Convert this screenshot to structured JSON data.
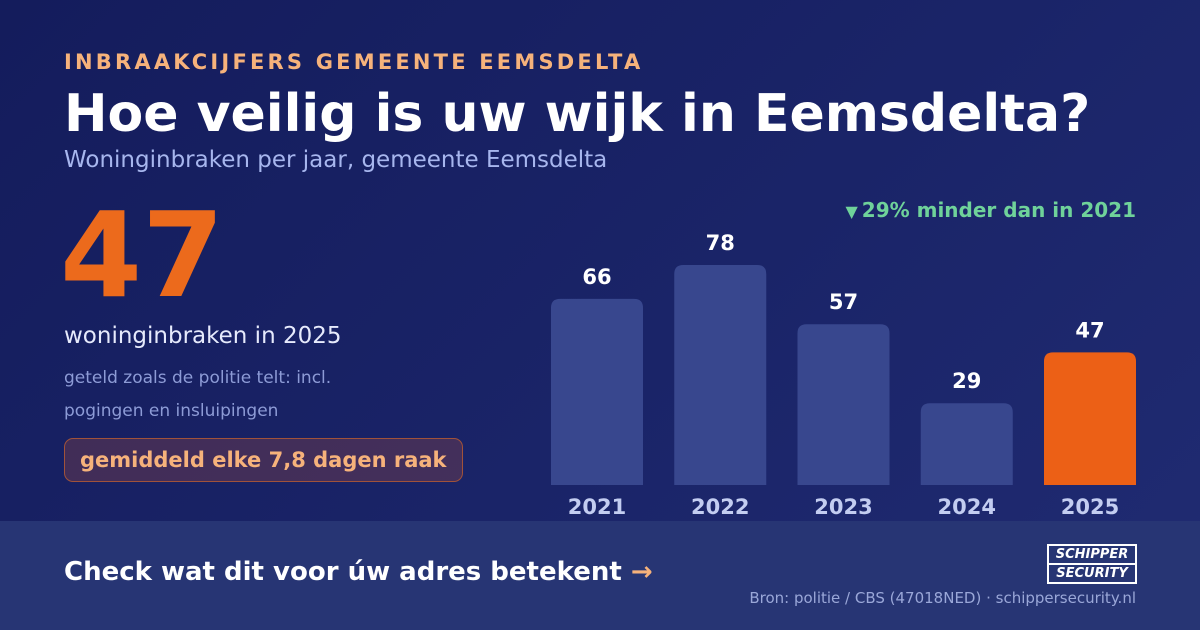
{
  "header": {
    "eyebrow": "INBRAAKCIJFERS GEMEENTE EEMSDELTA",
    "title": "Hoe veilig is uw wijk in Eemsdelta?",
    "subtitle": "Woninginbraken per jaar, gemeente Eemsdelta"
  },
  "metric": {
    "value": "47",
    "label": "woninginbraken in 2025",
    "note": "geteld zoals de politie telt: incl. pogingen en insluipingen",
    "badge": "gemiddeld elke 7,8 dagen raak"
  },
  "delta": {
    "arrow": "▼",
    "text": "29% minder dan in 2021"
  },
  "chart_data": {
    "type": "bar",
    "categories": [
      "2021",
      "2022",
      "2023",
      "2024",
      "2025"
    ],
    "values": [
      66,
      78,
      57,
      29,
      47
    ],
    "highlight_index": 4,
    "title": "",
    "xlabel": "",
    "ylabel": "",
    "ylim": [
      0,
      78
    ],
    "grid": false,
    "data_labels": true
  },
  "colors": {
    "bar": "#38478e",
    "bar_highlight": "#ec6016",
    "value_label": "#ffffff",
    "tick_label": "#c3cdf1",
    "accent": "#ec6a1c",
    "positive": "#6fd29a"
  },
  "footer": {
    "cta": "Check wat dit voor úw adres betekent",
    "cta_arrow": "→",
    "source": "Bron: politie / CBS (47018NED) · schippersecurity.nl"
  },
  "logo": {
    "line1": "SCHIPPER",
    "line2": "SECURITY"
  }
}
